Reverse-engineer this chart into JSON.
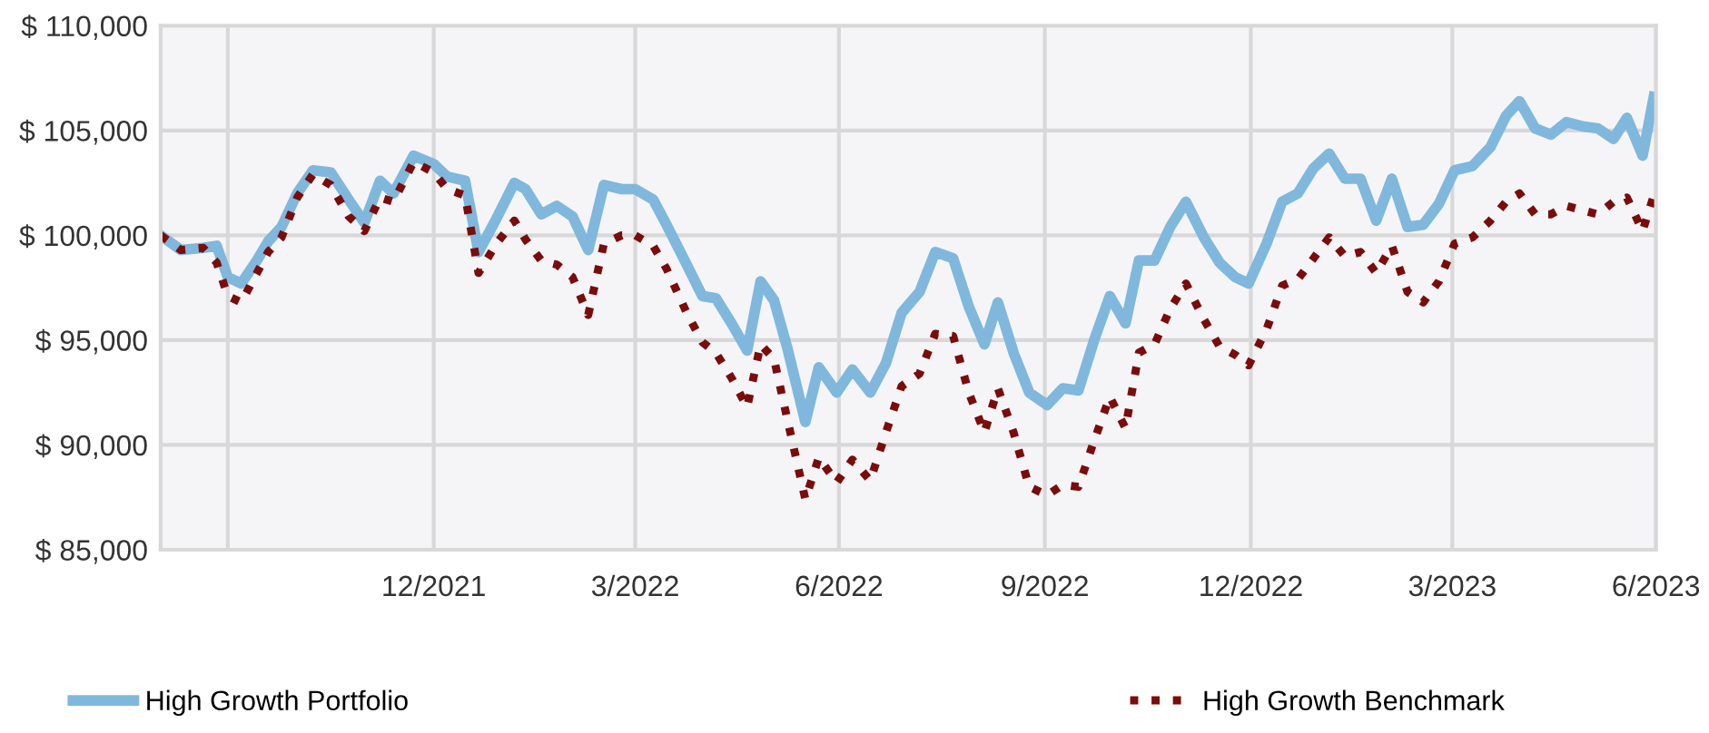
{
  "chart_data": {
    "type": "line",
    "x": [
      "2021-08-31",
      "2021-09-09",
      "2021-09-19",
      "2021-09-25",
      "2021-09-30",
      "2021-10-06",
      "2021-10-13",
      "2021-10-18",
      "2021-10-24",
      "2021-10-31",
      "2021-11-07",
      "2021-11-15",
      "2021-11-23",
      "2021-11-30",
      "2021-12-07",
      "2021-12-13",
      "2021-12-22",
      "2021-12-31",
      "2022-01-06",
      "2022-01-14",
      "2022-01-20",
      "2022-01-28",
      "2022-02-05",
      "2022-02-10",
      "2022-02-17",
      "2022-02-24",
      "2022-03-03",
      "2022-03-10",
      "2022-03-17",
      "2022-03-25",
      "2022-03-31",
      "2022-04-08",
      "2022-04-14",
      "2022-04-23",
      "2022-04-30",
      "2022-05-06",
      "2022-05-13",
      "2022-05-20",
      "2022-05-26",
      "2022-06-01",
      "2022-06-07",
      "2022-06-15",
      "2022-06-21",
      "2022-06-29",
      "2022-07-06",
      "2022-07-14",
      "2022-07-21",
      "2022-07-28",
      "2022-08-05",
      "2022-08-12",
      "2022-08-20",
      "2022-08-27",
      "2022-09-03",
      "2022-09-09",
      "2022-09-16",
      "2022-09-23",
      "2022-10-01",
      "2022-10-08",
      "2022-10-15",
      "2022-10-22",
      "2022-10-29",
      "2022-11-05",
      "2022-11-11",
      "2022-11-18",
      "2022-11-25",
      "2022-12-02",
      "2022-12-10",
      "2022-12-17",
      "2022-12-24",
      "2022-12-30",
      "2023-01-07",
      "2023-01-14",
      "2023-01-21",
      "2023-01-28",
      "2023-02-04",
      "2023-02-11",
      "2023-02-18",
      "2023-02-25",
      "2023-03-04",
      "2023-03-11",
      "2023-03-18",
      "2023-03-25",
      "2023-04-01",
      "2023-04-09",
      "2023-04-17",
      "2023-04-24",
      "2023-04-30",
      "2023-05-07",
      "2023-05-14",
      "2023-05-21",
      "2023-05-28",
      "2023-06-04",
      "2023-06-11",
      "2023-06-17",
      "2023-06-24",
      "2023-06-29"
    ],
    "series": [
      {
        "name": "High Growth Portfolio",
        "color": "#7fb8dc",
        "line_style": "solid",
        "values": [
          100000,
          99300,
          99400,
          99500,
          98000,
          97700,
          98800,
          99700,
          100400,
          102000,
          103100,
          103000,
          101700,
          100600,
          102600,
          102000,
          103800,
          103400,
          102800,
          102600,
          99200,
          100800,
          102500,
          102200,
          101000,
          101400,
          100900,
          99300,
          102400,
          102200,
          102200,
          101700,
          100500,
          98600,
          97100,
          97000,
          95800,
          94500,
          97800,
          96900,
          94600,
          91100,
          93700,
          92500,
          93600,
          92500,
          93900,
          96300,
          97300,
          99200,
          98900,
          96600,
          94800,
          96800,
          94400,
          92500,
          91900,
          92700,
          92600,
          95000,
          97100,
          95800,
          98800,
          98800,
          100400,
          101600,
          99900,
          98700,
          98000,
          97700,
          99600,
          101600,
          102000,
          103200,
          103900,
          102700,
          102700,
          100700,
          102700,
          100400,
          100500,
          101500,
          103100,
          103300,
          104200,
          105700,
          106400,
          105100,
          104800,
          105400,
          105200,
          105100,
          104600,
          105600,
          103800,
          106600
        ]
      },
      {
        "name": "High Growth Benchmark",
        "color": "#7a0c0c",
        "line_style": "dotted",
        "values": [
          100000,
          99300,
          99400,
          98700,
          97100,
          96800,
          98200,
          99200,
          99900,
          101800,
          102900,
          102400,
          100900,
          100200,
          101800,
          101600,
          103500,
          103000,
          102200,
          101900,
          98200,
          99600,
          100700,
          99800,
          98800,
          98600,
          98000,
          96200,
          99600,
          100000,
          100000,
          99500,
          98400,
          96300,
          94900,
          94400,
          93200,
          91800,
          94800,
          94100,
          91200,
          87400,
          89400,
          88200,
          89300,
          88300,
          90600,
          92800,
          93400,
          95300,
          95200,
          92500,
          90600,
          92700,
          90600,
          88000,
          87600,
          88100,
          88000,
          90200,
          92300,
          90800,
          94400,
          94800,
          96500,
          97700,
          96000,
          94700,
          94300,
          93800,
          95500,
          97600,
          97900,
          98900,
          99900,
          99000,
          99200,
          98200,
          99500,
          97300,
          96800,
          97800,
          99600,
          99900,
          100700,
          101600,
          102000,
          101000,
          101000,
          101400,
          101200,
          101000,
          101600,
          101800,
          100200,
          101900
        ]
      }
    ],
    "xlim": [
      "2021-08-31",
      "2023-06-30"
    ],
    "xticks": [
      {
        "value": "2021-09-30",
        "label": null
      },
      {
        "value": "2021-12-31",
        "label": "12/2021"
      },
      {
        "value": "2022-03-31",
        "label": "3/2022"
      },
      {
        "value": "2022-06-30",
        "label": "6/2022"
      },
      {
        "value": "2022-09-30",
        "label": "9/2022"
      },
      {
        "value": "2022-12-31",
        "label": "12/2022"
      },
      {
        "value": "2023-03-31",
        "label": "3/2023"
      },
      {
        "value": "2023-06-30",
        "label": "6/2023"
      }
    ],
    "ylim": [
      85000,
      110000
    ],
    "yticks": [
      {
        "value": 85000,
        "label": "$ 85,000"
      },
      {
        "value": 90000,
        "label": "$ 90,000"
      },
      {
        "value": 95000,
        "label": "$ 95,000"
      },
      {
        "value": 100000,
        "label": "$ 100,000"
      },
      {
        "value": 105000,
        "label": "$ 105,000"
      },
      {
        "value": 110000,
        "label": "$ 110,000"
      }
    ],
    "grid": true,
    "legend": "bottom",
    "marker": "none"
  }
}
